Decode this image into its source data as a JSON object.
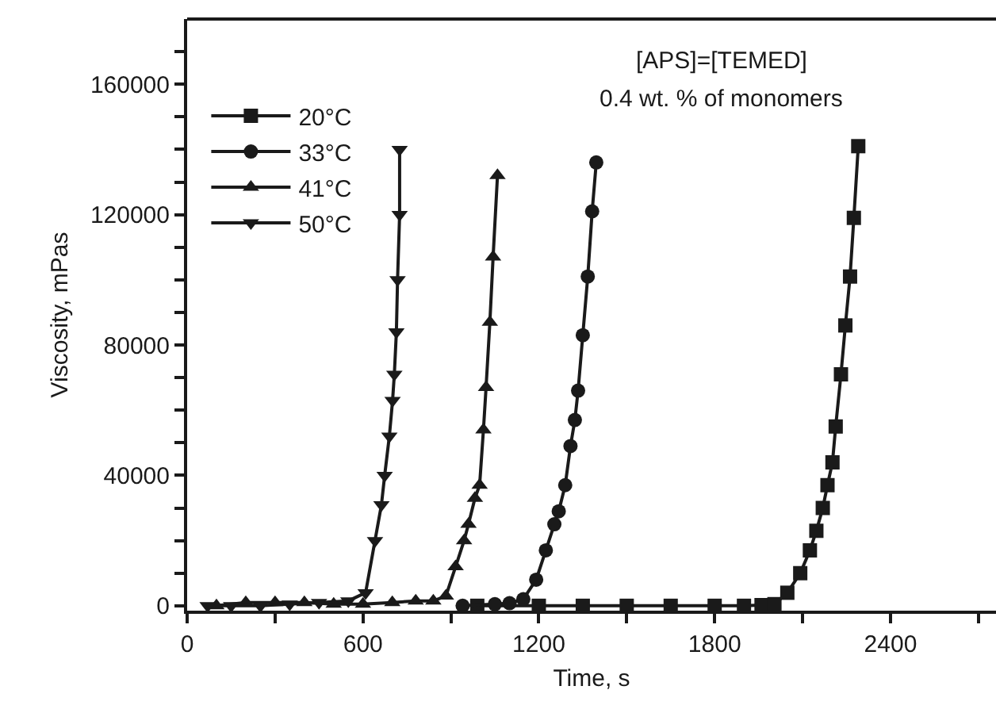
{
  "chart_data": {
    "type": "line",
    "xlabel": "Time, s",
    "ylabel": "Viscosity, mPas",
    "annotations": [
      "[APS]=[TEMED]",
      "0.4 wt. % of monomers"
    ],
    "xlim": [
      0,
      2760
    ],
    "ylim": [
      -1500,
      180000
    ],
    "xticks": [
      0,
      {
        "value": 300,
        "label": null
      },
      600,
      {
        "value": 900,
        "label": null
      },
      1200,
      {
        "value": 1500,
        "label": null
      },
      1800,
      {
        "value": 2100,
        "label": null
      },
      2400,
      {
        "value": 2700,
        "label": null
      }
    ],
    "yticks": [
      0,
      {
        "value": 10000,
        "label": null
      },
      {
        "value": 20000,
        "label": null
      },
      {
        "value": 30000,
        "label": null
      },
      40000,
      {
        "value": 50000,
        "label": null
      },
      {
        "value": 60000,
        "label": null
      },
      {
        "value": 70000,
        "label": null
      },
      80000,
      {
        "value": 90000,
        "label": null
      },
      {
        "value": 100000,
        "label": null
      },
      {
        "value": 110000,
        "label": null
      },
      120000,
      {
        "value": 130000,
        "label": null
      },
      {
        "value": 140000,
        "label": null
      },
      {
        "value": 150000,
        "label": null
      },
      160000,
      {
        "value": 170000,
        "label": null
      }
    ],
    "grid": false,
    "legend": "top left",
    "line_style": "solid",
    "series": [
      {
        "name": "20°C",
        "color": "#1a1a1a",
        "marker": "square",
        "x": [
          990,
          1200,
          1350,
          1500,
          1650,
          1800,
          1900,
          1960,
          2004,
          2048,
          2092,
          2125,
          2147,
          2169,
          2185,
          2202,
          2213,
          2231,
          2246,
          2262,
          2275,
          2290
        ],
        "values": [
          0,
          0,
          0,
          0,
          0,
          0,
          0,
          200,
          500,
          4000,
          10000,
          17000,
          23000,
          30000,
          37000,
          44000,
          55000,
          71000,
          86000,
          101000,
          119000,
          141000
        ]
      },
      {
        "name": "33°C",
        "color": "#1a1a1a",
        "marker": "circle",
        "x": [
          940,
          1050,
          1100,
          1147,
          1191,
          1224,
          1253,
          1268,
          1290,
          1308,
          1323,
          1334,
          1350,
          1367,
          1382,
          1396
        ],
        "values": [
          0,
          500,
          800,
          2000,
          8000,
          17000,
          25000,
          29000,
          37000,
          49000,
          57000,
          66000,
          83000,
          101000,
          121000,
          136000
        ]
      },
      {
        "name": "41°C",
        "color": "#1a1a1a",
        "marker": "triangle",
        "x": [
          100,
          200,
          300,
          400,
          500,
          600,
          700,
          780,
          840,
          883,
          916,
          945,
          960,
          982,
          998,
          1011,
          1020,
          1033,
          1044,
          1059
        ],
        "values": [
          0,
          1000,
          1000,
          1000,
          500,
          500,
          1000,
          1500,
          1500,
          3000,
          12000,
          20000,
          25000,
          33000,
          37000,
          54000,
          67000,
          87000,
          107000,
          132000
        ]
      },
      {
        "name": "50°C",
        "color": "#1a1a1a",
        "marker": "triangle-down",
        "x": [
          70,
          150,
          250,
          350,
          450,
          550,
          609,
          641,
          663,
          674,
          690,
          701,
          707,
          714,
          718,
          725,
          725
        ],
        "values": [
          0,
          0,
          0,
          500,
          1000,
          1500,
          4000,
          20000,
          31000,
          40000,
          52000,
          63000,
          71000,
          84000,
          100000,
          120000,
          140000
        ]
      }
    ]
  }
}
